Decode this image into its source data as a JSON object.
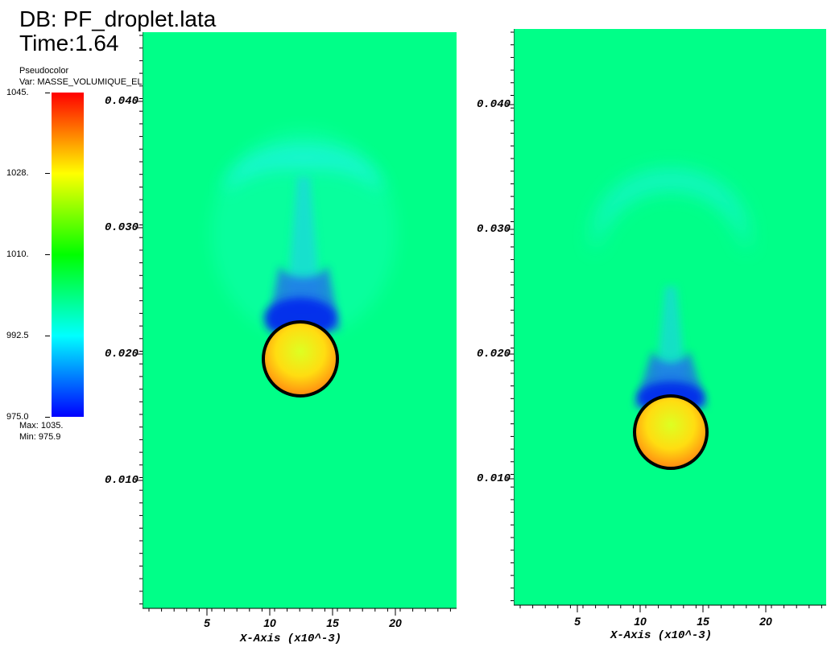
{
  "header": {
    "db_label": "DB: PF_droplet.lata",
    "time_label": "Time:1.64"
  },
  "legend": {
    "plot_type": "Pseudocolor",
    "var_label": "Var: MASSE_VOLUMIQUE_ELEM_dom",
    "ticks": [
      "1045.",
      "1028.",
      "1010.",
      "992.5",
      "975.0"
    ],
    "max_label": "Max:  1035.",
    "min_label": "Min:  975.9",
    "colors": [
      "#0000ff",
      "#00ffff",
      "#00ff00",
      "#ffff00",
      "#ff0000"
    ]
  },
  "plots": [
    {
      "y_ticks": [
        "0.040",
        "0.030",
        "0.020",
        "0.010"
      ],
      "x_ticks": [
        "5",
        "10",
        "15",
        "20"
      ],
      "x_axis_title": "X-Axis (x10^-3)"
    },
    {
      "y_ticks": [
        "0.040",
        "0.030",
        "0.020",
        "0.010"
      ],
      "x_ticks": [
        "5",
        "10",
        "15",
        "20"
      ],
      "x_axis_title": "X-Axis (x10^-3)"
    }
  ],
  "colors": {
    "background_field": "#00ff88",
    "wake_cyan": "#22eeee",
    "wake_blue": "#0022ee",
    "droplet_outline": "#000000"
  }
}
